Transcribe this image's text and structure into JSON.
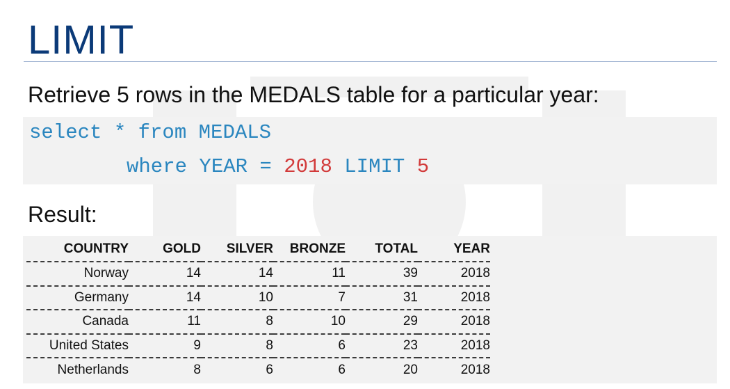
{
  "slide": {
    "title": "LIMIT",
    "subtitle": "Retrieve 5 rows in the MEDALS table for a particular year:",
    "code": {
      "line1": "select * from MEDALS",
      "line2_prefix": "where YEAR = ",
      "line2_year": "2018",
      "line2_mid": " LIMIT ",
      "line2_limit": "5"
    },
    "result_label": "Result:"
  },
  "table": {
    "headers": [
      "COUNTRY",
      "GOLD",
      "SILVER",
      "BRONZE",
      "TOTAL",
      "YEAR"
    ],
    "rows": [
      [
        "Norway",
        "14",
        "14",
        "11",
        "39",
        "2018"
      ],
      [
        "Germany",
        "14",
        "10",
        "7",
        "31",
        "2018"
      ],
      [
        "Canada",
        "11",
        "8",
        "10",
        "29",
        "2018"
      ],
      [
        "United States",
        "9",
        "8",
        "6",
        "23",
        "2018"
      ],
      [
        "Netherlands",
        "8",
        "6",
        "6",
        "20",
        "2018"
      ]
    ]
  },
  "colors": {
    "title": "#0b3a78",
    "code_keyword": "#2a86bf",
    "code_number": "#d23a3a",
    "panel_bg": "#f2f2f2"
  }
}
